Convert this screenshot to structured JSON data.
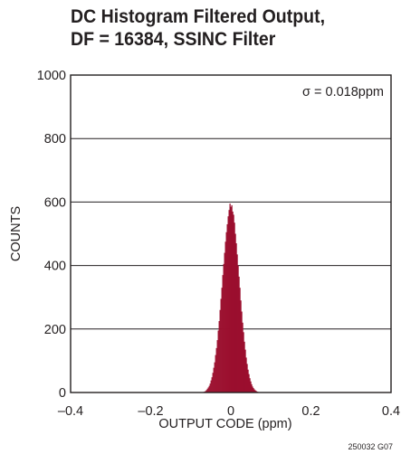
{
  "chart_data": {
    "type": "bar",
    "title": [
      "DC Histogram Filtered Output,",
      "DF = 16384, SSINC Filter"
    ],
    "xlabel": "OUTPUT CODE (ppm)",
    "ylabel": "COUNTS",
    "xlim": [
      -0.4,
      0.4
    ],
    "ylim": [
      0,
      1000
    ],
    "x_ticks": [
      "–0.4",
      "–0.2",
      "0",
      "0.2",
      "0.4"
    ],
    "x_tick_values": [
      -0.4,
      -0.2,
      0,
      0.2,
      0.4
    ],
    "y_ticks": [
      "0",
      "200",
      "400",
      "600",
      "800",
      "1000"
    ],
    "y_tick_values": [
      0,
      200,
      400,
      600,
      800,
      1000
    ],
    "grid": "horizontal",
    "annotation": "σ = 0.018ppm",
    "figure_id": "250032 G07",
    "bar_color": "#9b0f2e",
    "bin_width": 0.00225,
    "x": [
      -0.0675,
      -0.06525,
      -0.063,
      -0.06075,
      -0.0585,
      -0.05625,
      -0.054,
      -0.05175,
      -0.0495,
      -0.04725,
      -0.045,
      -0.04275,
      -0.0405,
      -0.03825,
      -0.036,
      -0.03375,
      -0.0315,
      -0.02925,
      -0.027,
      -0.02475,
      -0.0225,
      -0.02025,
      -0.018,
      -0.01575,
      -0.0135,
      -0.01125,
      -0.009,
      -0.00675,
      -0.0045,
      -0.00225,
      0.0,
      0.00225,
      0.0045,
      0.00675,
      0.009,
      0.01125,
      0.0135,
      0.01575,
      0.018,
      0.02025,
      0.0225,
      0.02475,
      0.027,
      0.02925,
      0.0315,
      0.03375,
      0.036,
      0.03825,
      0.0405,
      0.04275,
      0.045,
      0.04725,
      0.0495,
      0.05175,
      0.054,
      0.05625,
      0.0585,
      0.06075,
      0.063,
      0.06525,
      0.0675
    ],
    "values": [
      2,
      3,
      5,
      8,
      12,
      16,
      21,
      28,
      38,
      48,
      62,
      78,
      95,
      118,
      140,
      165,
      195,
      225,
      260,
      295,
      330,
      370,
      405,
      440,
      475,
      505,
      530,
      555,
      575,
      595,
      585,
      590,
      570,
      560,
      535,
      500,
      470,
      435,
      400,
      365,
      330,
      290,
      255,
      220,
      190,
      160,
      135,
      110,
      90,
      72,
      58,
      45,
      35,
      26,
      19,
      14,
      10,
      7,
      5,
      3,
      2
    ]
  }
}
